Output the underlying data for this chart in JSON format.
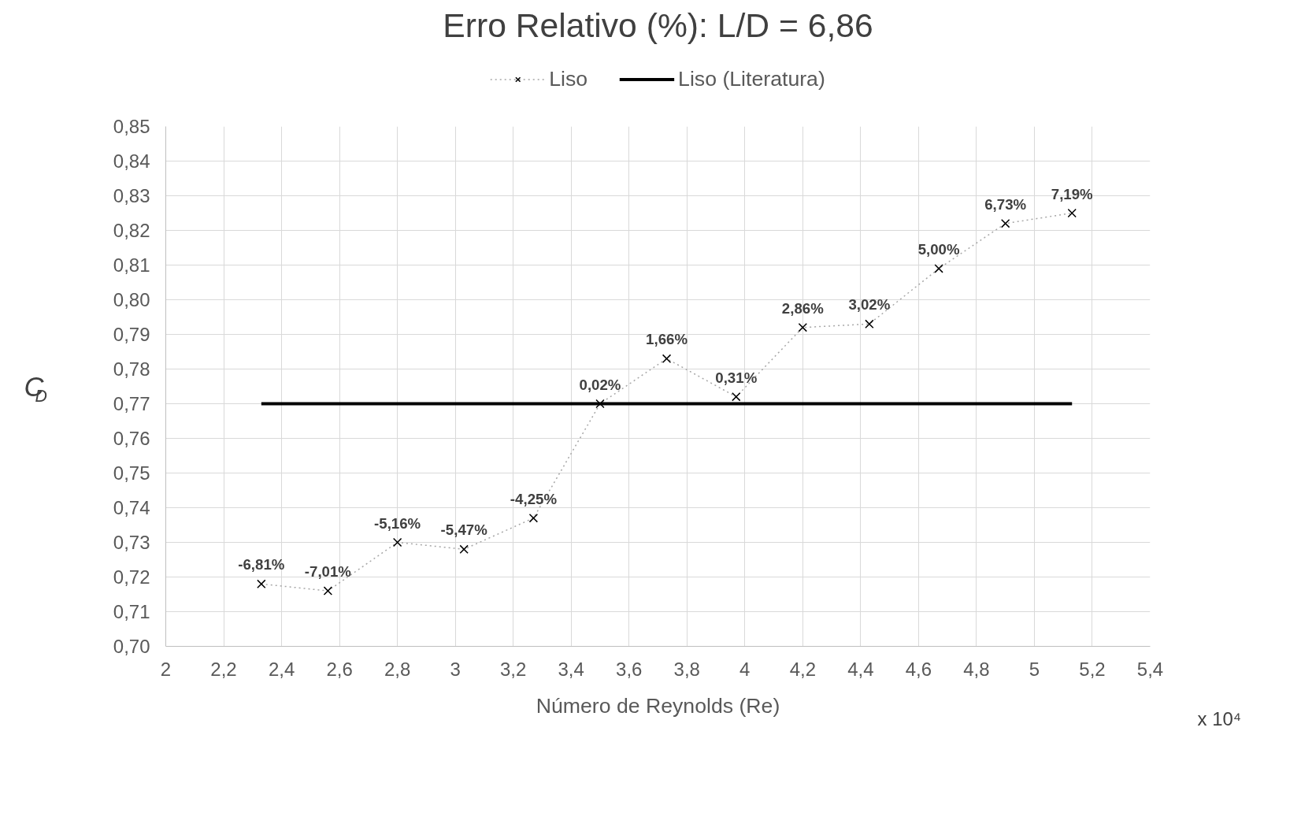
{
  "chart_data": {
    "type": "line",
    "title": "Erro Relativo (%): L/D = 6,86",
    "xlabel": "Número de Reynolds (Re)",
    "ylabel": "C$_{D}$",
    "annotations": [
      "x 10⁴",
      {
        "text": "-6,81%",
        "x": 2.33,
        "y": 0.718
      },
      {
        "text": "-7,01%",
        "x": 2.56,
        "y": 0.716
      },
      {
        "text": "-5,16%",
        "x": 2.8,
        "y": 0.73
      },
      {
        "text": "-5,47%",
        "x": 3.03,
        "y": 0.728
      },
      {
        "text": "-4,25%",
        "x": 3.27,
        "y": 0.737
      },
      {
        "text": "0,02%",
        "x": 3.5,
        "y": 0.77
      },
      {
        "text": "1,66%",
        "x": 3.73,
        "y": 0.783
      },
      {
        "text": "0,31%",
        "x": 3.97,
        "y": 0.772
      },
      {
        "text": "2,86%",
        "x": 4.2,
        "y": 0.792
      },
      {
        "text": "3,02%",
        "x": 4.43,
        "y": 0.793
      },
      {
        "text": "5,00%",
        "x": 4.67,
        "y": 0.809
      },
      {
        "text": "6,73%",
        "x": 4.9,
        "y": 0.822
      },
      {
        "text": "7,19%",
        "x": 5.13,
        "y": 0.825
      }
    ],
    "xlim": [
      2,
      5.4
    ],
    "xticks": [
      2,
      {
        "value": 2.2,
        "label": "2,2"
      },
      {
        "value": 2.4,
        "label": "2,4"
      },
      {
        "value": 2.6,
        "label": "2,6"
      },
      {
        "value": 2.8,
        "label": "2,8"
      },
      3,
      {
        "value": 3.2,
        "label": "3,2"
      },
      {
        "value": 3.4,
        "label": "3,4"
      },
      {
        "value": 3.6,
        "label": "3,6"
      },
      {
        "value": 3.8,
        "label": "3,8"
      },
      4,
      {
        "value": 4.2,
        "label": "4,2"
      },
      {
        "value": 4.4,
        "label": "4,4"
      },
      {
        "value": 4.6,
        "label": "4,6"
      },
      {
        "value": 4.8,
        "label": "4,8"
      },
      5,
      {
        "value": 5.2,
        "label": "5,2"
      },
      {
        "value": 5.4,
        "label": "5,4"
      }
    ],
    "ylim": [
      0.7,
      0.85
    ],
    "yticks": [
      {
        "value": 0.7,
        "label": "0,70"
      },
      {
        "value": 0.71,
        "label": "0,71"
      },
      {
        "value": 0.72,
        "label": "0,72"
      },
      {
        "value": 0.73,
        "label": "0,73"
      },
      {
        "value": 0.74,
        "label": "0,74"
      },
      {
        "value": 0.75,
        "label": "0,75"
      },
      {
        "value": 0.76,
        "label": "0,76"
      },
      {
        "value": 0.77,
        "label": "0,77"
      },
      {
        "value": 0.78,
        "label": "0,78"
      },
      {
        "value": 0.79,
        "label": "0,79"
      },
      {
        "value": 0.8,
        "label": "0,80"
      },
      {
        "value": 0.81,
        "label": "0,81"
      },
      {
        "value": 0.82,
        "label": "0,82"
      },
      {
        "value": 0.83,
        "label": "0,83"
      },
      {
        "value": 0.84,
        "label": "0,84"
      },
      {
        "value": 0.85,
        "label": "0,85"
      }
    ],
    "grid": true,
    "legend": "top",
    "series": [
      {
        "name": "Liso",
        "type": "line",
        "color": "#a6a6a6",
        "marker": "cross",
        "line_style": "dotted",
        "x": [
          2.33,
          2.56,
          2.8,
          3.03,
          3.27,
          3.5,
          3.73,
          3.97,
          4.2,
          4.43,
          4.67,
          4.9,
          5.13
        ],
        "values": [
          0.718,
          0.716,
          0.73,
          0.728,
          0.737,
          0.77,
          0.783,
          0.772,
          0.792,
          0.793,
          0.809,
          0.822,
          0.825
        ]
      },
      {
        "name": "Liso (Literatura)",
        "type": "line",
        "color": "#000000",
        "marker": "none",
        "line_style": "solid",
        "x": [
          2.33,
          5.13
        ],
        "values": [
          0.77,
          0.77
        ]
      }
    ]
  }
}
